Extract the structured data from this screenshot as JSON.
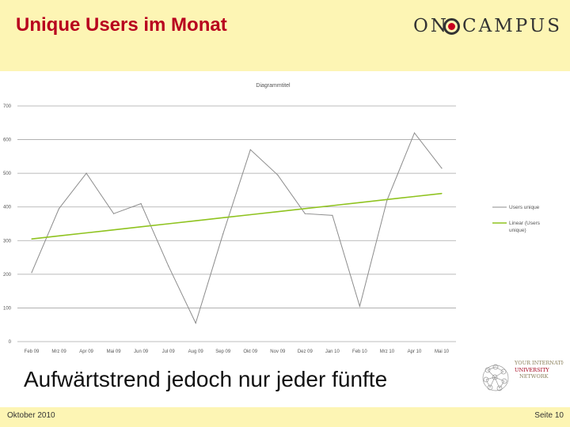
{
  "slide": {
    "title": "Unique Users im Monat",
    "subtitle": "Aufwärtstrend jedoch nur jeder fünfte",
    "footer_date": "Oktober 2010",
    "footer_page": "Seite 10"
  },
  "logo": {
    "left": "ON",
    "right": "CAMPUS"
  },
  "network_logo": {
    "line1": "YOUR INTERNATIONAL",
    "line2": "UNIVERSITY",
    "line3": "NETWORK"
  },
  "colors": {
    "title": "#b8001e",
    "header_bg": "#fdf5b4",
    "series_line": "#8c8c8c",
    "trend_line": "#8fc31f"
  },
  "chart_data": {
    "type": "line",
    "title": "Diagrammtitel",
    "xlabel": "",
    "ylabel": "",
    "categories": [
      "Feb 09",
      "Mrz 09",
      "Apr 09",
      "Mai 09",
      "Jun 09",
      "Jul 09",
      "Aug 09",
      "Sep 09",
      "Okt 09",
      "Nov 09",
      "Dez 09",
      "Jan 10",
      "Feb 10",
      "Mrz 10",
      "Apr 10",
      "Mai 10"
    ],
    "ylim": [
      0,
      700
    ],
    "yticks": [
      0,
      100,
      200,
      300,
      400,
      500,
      600,
      700
    ],
    "series": [
      {
        "name": "Users unique",
        "values": [
          205,
          395,
          500,
          380,
          410,
          225,
          55,
          320,
          570,
          495,
          380,
          375,
          105,
          420,
          620,
          515
        ]
      },
      {
        "name": "Linear (Users unique)",
        "values": [
          305,
          314,
          323,
          332,
          341,
          350,
          359,
          368,
          377,
          386,
          395,
          404,
          413,
          422,
          431,
          440
        ]
      }
    ],
    "legend": [
      "Users unique",
      "Linear (Users unique)"
    ],
    "legend_position": "right"
  }
}
